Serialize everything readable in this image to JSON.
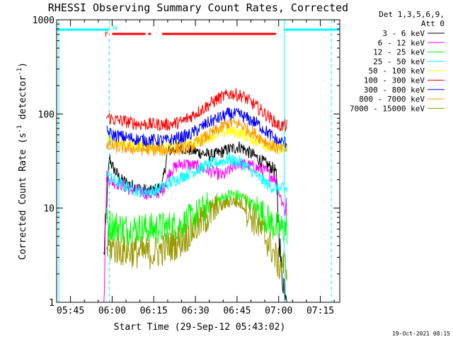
{
  "chart_data": {
    "type": "line",
    "title": "RHESSI Observing Summary Count Rates, Corrected",
    "xlabel": "Start Time (29-Sep-12 05:43:02)",
    "ylabel_prefix": "Corrected Count Rate (s",
    "ylabel_sup1": "-1",
    "ylabel_mid": " detector",
    "ylabel_sup2": "-1",
    "ylabel_suffix": ")",
    "yscale": "log",
    "ylim": [
      1,
      1000
    ],
    "xlim": [
      "05:40",
      "07:22"
    ],
    "xticks": [
      "05:45",
      "06:00",
      "06:15",
      "06:30",
      "06:45",
      "07:00",
      "07:15"
    ],
    "yticks": [
      "1",
      "10",
      "100",
      "1000"
    ],
    "legend_header": [
      "Det 1,3,5,6,9,",
      "Att 0"
    ],
    "legend_position": "right",
    "timestamp": "19-Oct-2021 08:15",
    "markers": {
      "flag_f": "F",
      "flag_n": "N"
    },
    "series": [
      {
        "name": "3 - 6 keV",
        "color": "#000000",
        "keypoints": [
          [
            "05:57",
            3
          ],
          [
            "05:59",
            35
          ],
          [
            "06:00",
            28
          ],
          [
            "06:03",
            20
          ],
          [
            "06:06",
            18
          ],
          [
            "06:10",
            16
          ],
          [
            "06:14",
            15
          ],
          [
            "06:18",
            17
          ],
          [
            "06:20",
            40
          ],
          [
            "06:24",
            45
          ],
          [
            "06:30",
            40
          ],
          [
            "06:36",
            36
          ],
          [
            "06:42",
            42
          ],
          [
            "06:46",
            45
          ],
          [
            "06:50",
            38
          ],
          [
            "06:55",
            30
          ],
          [
            "06:59",
            25
          ],
          [
            "07:01",
            2
          ],
          [
            "07:03",
            1.3
          ]
        ]
      },
      {
        "name": "6 - 12 keV",
        "color": "#ff00ff",
        "keypoints": [
          [
            "05:57",
            1
          ],
          [
            "05:58",
            22
          ],
          [
            "06:00",
            19
          ],
          [
            "06:03",
            18
          ],
          [
            "06:06",
            16
          ],
          [
            "06:10",
            15
          ],
          [
            "06:14",
            14
          ],
          [
            "06:18",
            15
          ],
          [
            "06:21",
            25
          ],
          [
            "06:25",
            30
          ],
          [
            "06:30",
            28
          ],
          [
            "06:35",
            25
          ],
          [
            "06:40",
            22
          ],
          [
            "06:45",
            30
          ],
          [
            "06:50",
            28
          ],
          [
            "06:55",
            25
          ],
          [
            "06:59",
            20
          ],
          [
            "07:01",
            12
          ],
          [
            "07:03",
            9
          ]
        ]
      },
      {
        "name": "12 - 25 keV",
        "color": "#00ff00",
        "keypoints": [
          [
            "05:58",
            7
          ],
          [
            "06:00",
            6.5
          ],
          [
            "06:05",
            6
          ],
          [
            "06:15",
            6
          ],
          [
            "06:25",
            6.5
          ],
          [
            "06:32",
            9
          ],
          [
            "06:38",
            12
          ],
          [
            "06:43",
            14
          ],
          [
            "06:47",
            13
          ],
          [
            "06:52",
            10
          ],
          [
            "06:57",
            7
          ],
          [
            "07:00",
            6
          ],
          [
            "07:03",
            6
          ]
        ]
      },
      {
        "name": "25 - 50 keV",
        "color": "#00ffff",
        "keypoints": [
          [
            "05:58",
            22
          ],
          [
            "06:00",
            20
          ],
          [
            "06:05",
            17
          ],
          [
            "06:10",
            15
          ],
          [
            "06:15",
            15
          ],
          [
            "06:20",
            18
          ],
          [
            "06:27",
            23
          ],
          [
            "06:35",
            29
          ],
          [
            "06:42",
            33
          ],
          [
            "06:47",
            30
          ],
          [
            "06:53",
            21
          ],
          [
            "06:57",
            17
          ],
          [
            "07:00",
            16
          ],
          [
            "07:03",
            16
          ]
        ]
      },
      {
        "name": "50 - 100 keV",
        "color": "#ffff00",
        "keypoints": [
          [
            "05:58",
            55
          ],
          [
            "06:00",
            50
          ],
          [
            "06:10",
            45
          ],
          [
            "06:20",
            44
          ],
          [
            "06:28",
            48
          ],
          [
            "06:35",
            58
          ],
          [
            "06:42",
            66
          ],
          [
            "06:46",
            63
          ],
          [
            "06:52",
            52
          ],
          [
            "06:57",
            45
          ],
          [
            "07:00",
            43
          ],
          [
            "07:03",
            43
          ]
        ]
      },
      {
        "name": "100 - 300 keV",
        "color": "#ff0000",
        "keypoints": [
          [
            "05:58",
            95
          ],
          [
            "06:00",
            88
          ],
          [
            "06:10",
            78
          ],
          [
            "06:20",
            77
          ],
          [
            "06:25",
            82
          ],
          [
            "06:32",
            110
          ],
          [
            "06:38",
            145
          ],
          [
            "06:43",
            165
          ],
          [
            "06:47",
            155
          ],
          [
            "06:52",
            120
          ],
          [
            "06:57",
            90
          ],
          [
            "07:00",
            75
          ],
          [
            "07:03",
            75
          ]
        ]
      },
      {
        "name": "300 - 800 keV",
        "color": "#0000ff",
        "keypoints": [
          [
            "05:58",
            65
          ],
          [
            "06:00",
            60
          ],
          [
            "06:10",
            53
          ],
          [
            "06:20",
            52
          ],
          [
            "06:28",
            60
          ],
          [
            "06:35",
            82
          ],
          [
            "06:42",
            100
          ],
          [
            "06:46",
            98
          ],
          [
            "06:52",
            80
          ],
          [
            "06:57",
            60
          ],
          [
            "07:00",
            50
          ],
          [
            "07:03",
            50
          ]
        ]
      },
      {
        "name": "800 - 7000 keV",
        "color": "#ff9900",
        "keypoints": [
          [
            "05:58",
            48
          ],
          [
            "06:00",
            45
          ],
          [
            "06:10",
            42
          ],
          [
            "06:20",
            41
          ],
          [
            "06:28",
            44
          ],
          [
            "06:35",
            60
          ],
          [
            "06:42",
            80
          ],
          [
            "06:46",
            78
          ],
          [
            "06:52",
            60
          ],
          [
            "06:57",
            47
          ],
          [
            "07:00",
            42
          ],
          [
            "07:03",
            42
          ]
        ]
      },
      {
        "name": "7000 - 15000 keV",
        "color": "#999900",
        "keypoints": [
          [
            "05:58",
            4
          ],
          [
            "06:00",
            3.8
          ],
          [
            "06:05",
            3.5
          ],
          [
            "06:15",
            3.3
          ],
          [
            "06:25",
            4.5
          ],
          [
            "06:32",
            7
          ],
          [
            "06:38",
            10
          ],
          [
            "06:43",
            12
          ],
          [
            "06:47",
            11
          ],
          [
            "06:52",
            7
          ],
          [
            "06:57",
            4
          ],
          [
            "07:00",
            2.5
          ],
          [
            "07:03",
            2.5
          ]
        ]
      }
    ]
  }
}
